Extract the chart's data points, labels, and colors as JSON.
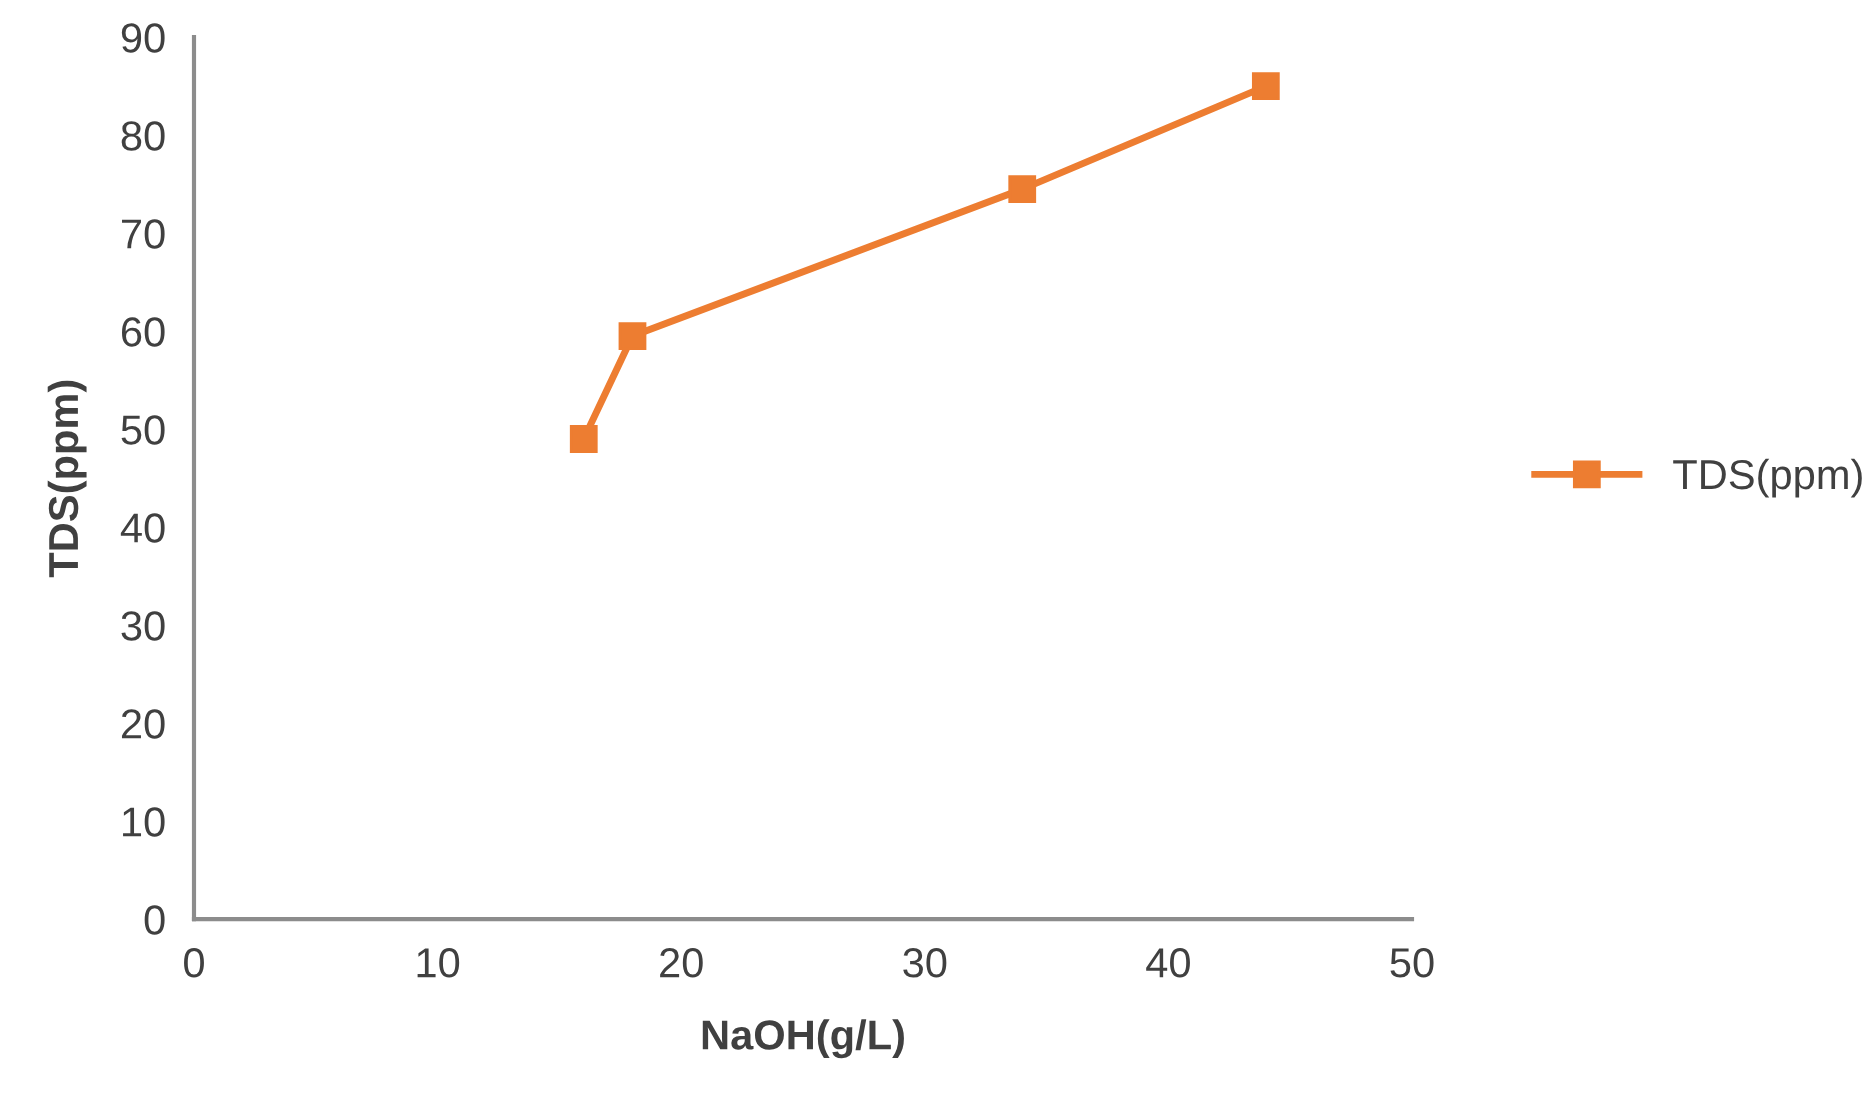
{
  "chart_data": {
    "type": "line",
    "xlabel": "NaOH(g/L)",
    "ylabel": "TDS(ppm)",
    "x": [
      16,
      18,
      34,
      44
    ],
    "series": [
      {
        "name": "TDS(ppm)",
        "color": "#ed7d31",
        "values": [
          49,
          59.5,
          74.5,
          85
        ]
      }
    ],
    "xlim": [
      0,
      50
    ],
    "xticks": [
      0,
      10,
      20,
      30,
      40,
      50
    ],
    "ylim": [
      0,
      90
    ],
    "yticks": [
      0,
      10,
      20,
      30,
      40,
      50,
      60,
      70,
      80,
      90
    ],
    "grid": false,
    "legend": "right",
    "marker": "square",
    "line_style": "solid"
  }
}
